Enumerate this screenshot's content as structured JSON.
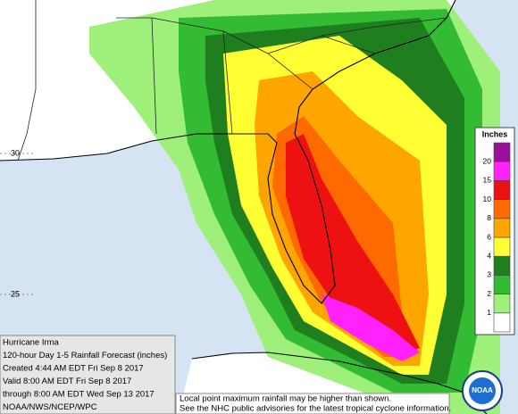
{
  "header": {
    "lines": [
      "Hurricane Irma",
      "120-hour Day 1-5 Rainfall Forecast (inches)",
      "Created 4:44 AM EDT Fri Sep 8 2017",
      "Valid 8:00 AM EDT Fri Sep 8 2017",
      "through 8:00 AM EDT Wed Sep 13 2017",
      "NOAA/NWS/NCEP/WPC"
    ]
  },
  "note": {
    "lines": [
      "Local point maximum rainfall may be higher than shown.",
      "See the NHC public advisories for the latest tropical cyclone information."
    ]
  },
  "map": {
    "latitude_labels": [
      "30",
      "25"
    ]
  },
  "legend": {
    "title": "Inches",
    "levels": [
      1,
      2,
      3,
      4,
      6,
      8,
      10,
      15,
      20
    ],
    "colors": [
      "#ffffff",
      "#9ef07a",
      "#33bb33",
      "#1f7f1f",
      "#ffff33",
      "#ffa500",
      "#ff6a00",
      "#ee1111",
      "#ff22ff",
      "#991199"
    ]
  },
  "logo": {
    "text": "NOAA"
  }
}
